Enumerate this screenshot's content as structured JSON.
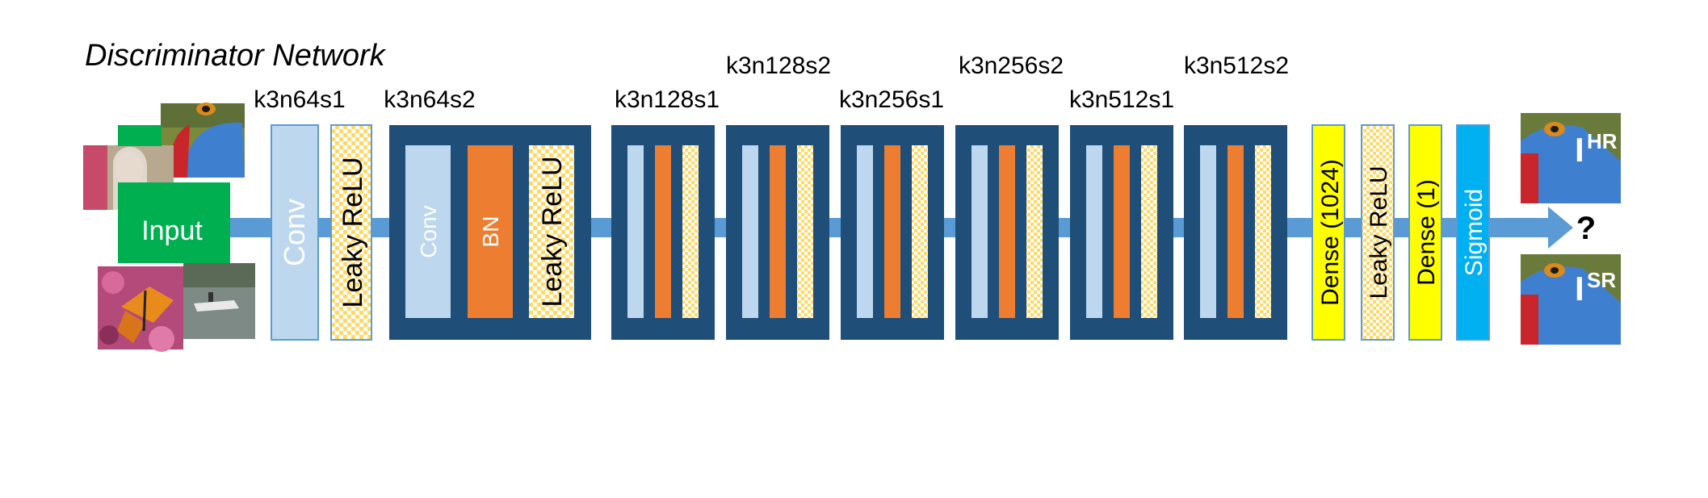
{
  "title": "Discriminator Network",
  "input_label": "Input",
  "input_images": [
    {
      "icon": "mandrill-photo-icon"
    },
    {
      "icon": "woman-portrait-photo-icon"
    },
    {
      "icon": "butterfly-flowers-photo-icon"
    },
    {
      "icon": "boat-water-photo-icon"
    }
  ],
  "first_stage": {
    "config": "k3n64s1",
    "layers": [
      "Conv",
      "Leaky ReLU"
    ]
  },
  "blocks": [
    {
      "config": "k3n64s2",
      "layers": [
        "Conv",
        "BN",
        "Leaky ReLU"
      ],
      "expanded": true
    },
    {
      "config": "k3n128s1"
    },
    {
      "config": "k3n128s2"
    },
    {
      "config": "k3n256s1"
    },
    {
      "config": "k3n256s2"
    },
    {
      "config": "k3n512s1"
    },
    {
      "config": "k3n512s2"
    }
  ],
  "head_layers": [
    "Dense (1024)",
    "Leaky ReLU",
    "Dense (1)",
    "Sigmoid"
  ],
  "question_mark": "?",
  "outputs": [
    {
      "base": "I",
      "sup": "HR",
      "icon": "mandrill-hr-photo-icon"
    },
    {
      "base": "I",
      "sup": "SR",
      "icon": "mandrill-sr-photo-icon"
    }
  ],
  "colors": {
    "block_navy": "#1f4e79",
    "conv_light_blue": "#bdd7ee",
    "bn_orange": "#ed7d31",
    "leaky_checker_yellow": "#ffd966",
    "dense_yellow": "#ffff00",
    "sigmoid_cyan": "#00b0f0",
    "arrow_blue": "#5b9bd5",
    "input_green": "#00b050"
  }
}
